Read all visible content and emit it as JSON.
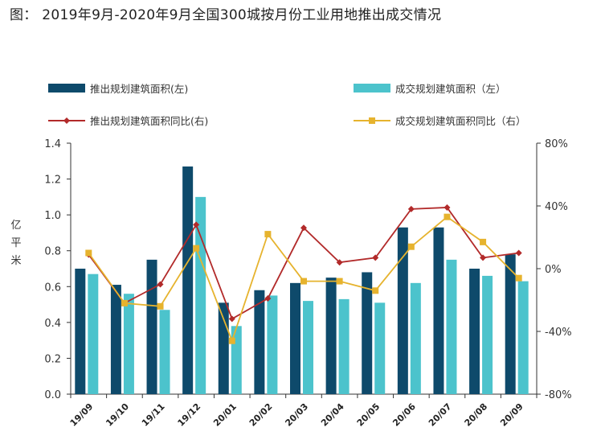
{
  "header": {
    "title": "图： 2019年9月-2020年9月全国300城按月份工业用地推出成交情况"
  },
  "colors": {
    "bar_supply": "#0e4a6b",
    "bar_deal": "#4cc3cc",
    "line_supply": "#b22a2a",
    "line_deal": "#e6b32e",
    "axis": "#333333"
  },
  "chart_data": {
    "type": "bar",
    "categories": [
      "19/09",
      "19/10",
      "19/11",
      "19/12",
      "20/01",
      "20/02",
      "20/03",
      "20/04",
      "20/05",
      "20/06",
      "20/07",
      "20/08",
      "20/09"
    ],
    "series": [
      {
        "name": "推出规划建筑面积(左)",
        "type": "bar",
        "axis": "left",
        "values": [
          0.7,
          0.61,
          0.75,
          1.27,
          0.51,
          0.58,
          0.62,
          0.65,
          0.68,
          0.93,
          0.93,
          0.7,
          0.78
        ]
      },
      {
        "name": "成交规划建筑面积（左）",
        "type": "bar",
        "axis": "left",
        "values": [
          0.67,
          0.56,
          0.47,
          1.1,
          0.38,
          0.55,
          0.52,
          0.53,
          0.51,
          0.62,
          0.75,
          0.66,
          0.63
        ]
      },
      {
        "name": "推出规划建筑面积同比(右)",
        "type": "line",
        "axis": "right",
        "values": [
          0.09,
          -0.22,
          -0.1,
          0.28,
          -0.32,
          -0.19,
          0.26,
          0.04,
          0.07,
          0.38,
          0.39,
          0.07,
          0.1
        ]
      },
      {
        "name": "成交规划建筑面积同比（右）",
        "type": "line",
        "axis": "right",
        "values": [
          0.1,
          -0.22,
          -0.24,
          0.13,
          -0.46,
          0.22,
          -0.08,
          -0.08,
          -0.14,
          0.14,
          0.33,
          0.17,
          -0.06
        ]
      }
    ],
    "ylabel": "亿平米",
    "ylim": [
      0,
      1.4
    ],
    "yticks": [
      "0.0",
      "0.2",
      "0.4",
      "0.6",
      "0.8",
      "1.0",
      "1.2",
      "1.4"
    ],
    "y2lim": [
      -0.8,
      0.8
    ],
    "y2ticks": [
      "-80%",
      "-40%",
      "0%",
      "40%",
      "80%"
    ],
    "legend_position": "top",
    "grid": false
  }
}
